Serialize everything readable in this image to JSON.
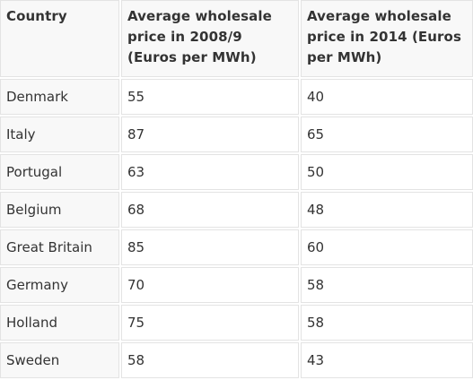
{
  "table": {
    "headers": [
      "Country",
      "Average wholesale price in 2008/9 (Euros per MWh)",
      "Average wholesale price in 2014 (Euros per MWh)"
    ],
    "rows": [
      {
        "country": "Denmark",
        "price_2008_9": "55",
        "price_2014": "40"
      },
      {
        "country": "Italy",
        "price_2008_9": "87",
        "price_2014": "65"
      },
      {
        "country": "Portugal",
        "price_2008_9": "63",
        "price_2014": "50"
      },
      {
        "country": "Belgium",
        "price_2008_9": "68",
        "price_2014": "48"
      },
      {
        "country": "Great Britain",
        "price_2008_9": "85",
        "price_2014": "60"
      },
      {
        "country": "Germany",
        "price_2008_9": "70",
        "price_2014": "58"
      },
      {
        "country": "Holland",
        "price_2008_9": "75",
        "price_2014": "58"
      },
      {
        "country": "Sweden",
        "price_2008_9": "58",
        "price_2014": "43"
      }
    ]
  }
}
